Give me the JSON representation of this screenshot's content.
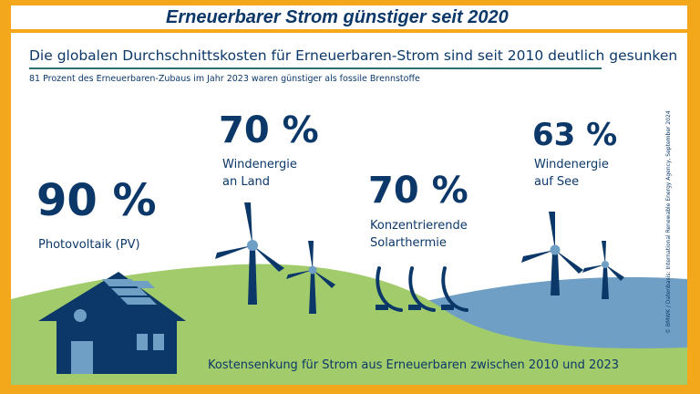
{
  "banner": {
    "title": "Erneuerbarer Strom günstiger seit 2020"
  },
  "headline": "Die globalen Durchschnittskosten für Erneuerbaren-Strom sind seit 2010 deutlich gesunken",
  "subline": "81 Prozent des Erneuerbaren-Zubaus im Jahr 2023 waren günstiger als fossile Brennstoffe",
  "figures": {
    "pv": {
      "value": "90 %",
      "label": "Photovoltaik (PV)"
    },
    "onshore": {
      "value": "70 %",
      "label_line1": "Windenergie",
      "label_line2": "an Land"
    },
    "csp": {
      "value": "70 %",
      "label_line1": "Konzentrierende",
      "label_line2": "Solarthermie"
    },
    "offshore": {
      "value": "63 %",
      "label_line1": "Windenergie",
      "label_line2": "auf See"
    }
  },
  "footer": "Kostensenkung für Strom aus Erneuerbaren zwischen 2010 und 2023",
  "credit": "© BMWK / Datenbasis: International Renewable Energy Agency, September 2024",
  "colors": {
    "frame": "#f3a81c",
    "navy": "#0c3869",
    "hill_green": "#a2cc6b",
    "sea_blue": "#6f9fc4",
    "rule_teal": "#2a6f73"
  }
}
